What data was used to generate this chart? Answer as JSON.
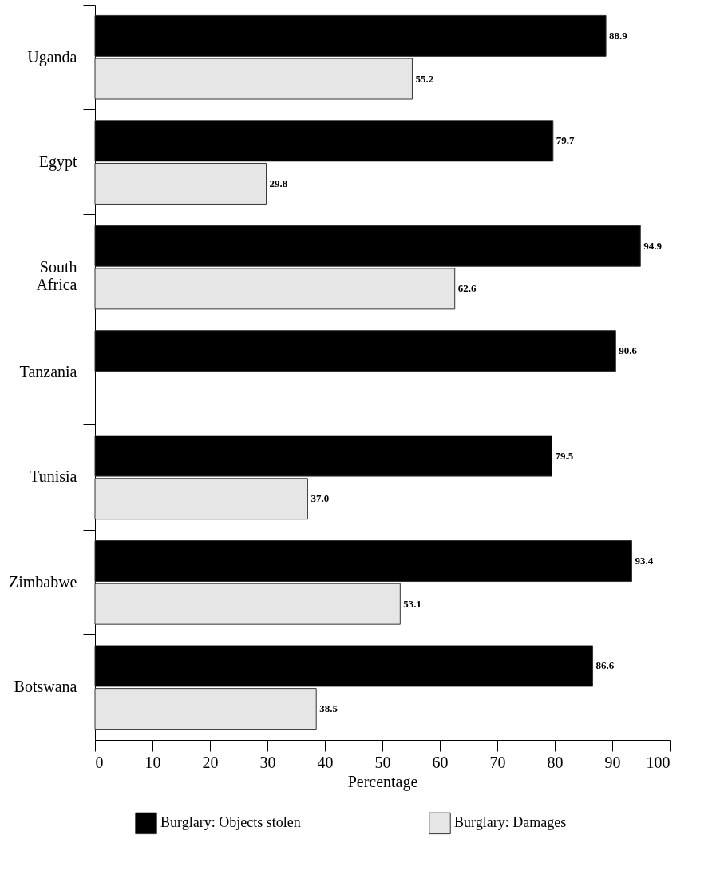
{
  "chart_data": {
    "type": "bar",
    "orientation": "horizontal",
    "categories": [
      "Uganda",
      "Egypt",
      "South Africa",
      "Tanzania",
      "Tunisia",
      "Zimbabwe",
      "Botswana"
    ],
    "series": [
      {
        "name": "Burglary: Objects stolen",
        "color": "#000000",
        "values": [
          88.9,
          79.7,
          94.9,
          90.6,
          79.5,
          93.4,
          86.6
        ],
        "value_labels": [
          "88.9",
          "79.7",
          "94.9",
          "90.6",
          "79.5",
          "93.4",
          "86.6"
        ]
      },
      {
        "name": "Burglary: Damages",
        "color": "#e6e6e6",
        "values": [
          55.2,
          29.8,
          62.6,
          null,
          37.0,
          53.1,
          38.5
        ],
        "value_labels": [
          "55.2",
          "29.8",
          "62.6",
          null,
          "37.0",
          "53.1",
          "38.5"
        ]
      }
    ],
    "xlabel": "Percentage",
    "xlim": [
      0,
      100
    ],
    "xticks": [
      0,
      10,
      20,
      30,
      40,
      50,
      60,
      70,
      80,
      90,
      100
    ],
    "grid": false,
    "legend": "bottom"
  }
}
